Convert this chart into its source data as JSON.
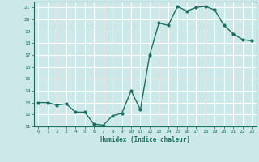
{
  "x": [
    0,
    1,
    2,
    3,
    4,
    5,
    6,
    7,
    8,
    9,
    10,
    11,
    12,
    13,
    14,
    15,
    16,
    17,
    18,
    19,
    20,
    21,
    22,
    23
  ],
  "y": [
    13.0,
    13.0,
    12.8,
    12.9,
    12.2,
    12.2,
    11.2,
    11.1,
    11.9,
    12.1,
    14.0,
    12.4,
    17.0,
    19.7,
    19.5,
    21.1,
    20.7,
    21.0,
    21.1,
    20.8,
    19.5,
    18.8,
    18.3,
    18.2
  ],
  "line_color": "#1a7060",
  "marker": "o",
  "marker_size": 2.0,
  "line_width": 1.0,
  "xlabel": "Humidex (Indice chaleur)",
  "bg_color": "#cce8e8",
  "grid_color": "#ffffff",
  "tick_color": "#1a7060",
  "label_color": "#1a7060",
  "ylim": [
    11,
    21.5
  ],
  "xlim": [
    -0.5,
    23.5
  ],
  "yticks": [
    11,
    12,
    13,
    14,
    15,
    16,
    17,
    18,
    19,
    20,
    21
  ],
  "xticks": [
    0,
    1,
    2,
    3,
    4,
    5,
    6,
    7,
    8,
    9,
    10,
    11,
    12,
    13,
    14,
    15,
    16,
    17,
    18,
    19,
    20,
    21,
    22,
    23
  ]
}
